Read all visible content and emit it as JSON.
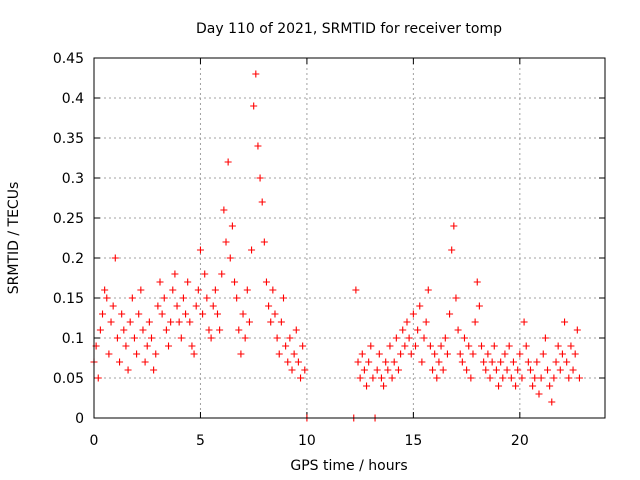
{
  "chart_data": {
    "type": "scatter",
    "title": "Day 110 of 2021, SRMTID for receiver tomp",
    "xlabel": "GPS time / hours",
    "ylabel": "SRMTID / TECUs",
    "xlim": [
      0,
      24
    ],
    "ylim": [
      0,
      0.45
    ],
    "xticks": [
      0,
      5,
      10,
      15,
      20
    ],
    "xtick_labels": [
      "0",
      "5",
      "10",
      "15",
      "20"
    ],
    "yticks": [
      0,
      0.05,
      0.1,
      0.15,
      0.2,
      0.25,
      0.3,
      0.35,
      0.4,
      0.45
    ],
    "ytick_labels": [
      "0",
      "0.05",
      "0.1",
      "0.15",
      "0.2",
      "0.25",
      "0.3",
      "0.35",
      "0.4",
      "0.45"
    ],
    "grid": true,
    "marker": "plus",
    "color": "#ff0000",
    "series": [
      {
        "name": "SRMTID",
        "points": [
          [
            0.0,
            0.07
          ],
          [
            0.1,
            0.09
          ],
          [
            0.2,
            0.05
          ],
          [
            0.3,
            0.11
          ],
          [
            0.4,
            0.13
          ],
          [
            0.5,
            0.16
          ],
          [
            0.6,
            0.15
          ],
          [
            0.7,
            0.08
          ],
          [
            0.8,
            0.12
          ],
          [
            0.9,
            0.14
          ],
          [
            1.0,
            0.2
          ],
          [
            1.1,
            0.1
          ],
          [
            1.2,
            0.07
          ],
          [
            1.3,
            0.13
          ],
          [
            1.4,
            0.11
          ],
          [
            1.5,
            0.09
          ],
          [
            1.6,
            0.06
          ],
          [
            1.7,
            0.12
          ],
          [
            1.8,
            0.15
          ],
          [
            1.9,
            0.1
          ],
          [
            2.0,
            0.08
          ],
          [
            2.1,
            0.13
          ],
          [
            2.2,
            0.16
          ],
          [
            2.3,
            0.11
          ],
          [
            2.4,
            0.07
          ],
          [
            2.5,
            0.09
          ],
          [
            2.6,
            0.12
          ],
          [
            2.7,
            0.1
          ],
          [
            2.8,
            0.06
          ],
          [
            2.9,
            0.08
          ],
          [
            3.0,
            0.14
          ],
          [
            3.1,
            0.17
          ],
          [
            3.2,
            0.13
          ],
          [
            3.3,
            0.15
          ],
          [
            3.4,
            0.11
          ],
          [
            3.5,
            0.09
          ],
          [
            3.6,
            0.12
          ],
          [
            3.7,
            0.16
          ],
          [
            3.8,
            0.18
          ],
          [
            3.9,
            0.14
          ],
          [
            4.0,
            0.12
          ],
          [
            4.1,
            0.1
          ],
          [
            4.2,
            0.15
          ],
          [
            4.3,
            0.13
          ],
          [
            4.4,
            0.17
          ],
          [
            4.5,
            0.12
          ],
          [
            4.6,
            0.09
          ],
          [
            4.7,
            0.08
          ],
          [
            4.8,
            0.14
          ],
          [
            4.9,
            0.16
          ],
          [
            5.0,
            0.21
          ],
          [
            5.1,
            0.13
          ],
          [
            5.2,
            0.18
          ],
          [
            5.3,
            0.15
          ],
          [
            5.4,
            0.11
          ],
          [
            5.5,
            0.1
          ],
          [
            5.6,
            0.14
          ],
          [
            5.7,
            0.16
          ],
          [
            5.8,
            0.13
          ],
          [
            5.9,
            0.11
          ],
          [
            6.0,
            0.18
          ],
          [
            6.1,
            0.26
          ],
          [
            6.2,
            0.22
          ],
          [
            6.3,
            0.32
          ],
          [
            6.4,
            0.2
          ],
          [
            6.5,
            0.24
          ],
          [
            6.6,
            0.17
          ],
          [
            6.7,
            0.15
          ],
          [
            6.8,
            0.11
          ],
          [
            6.9,
            0.08
          ],
          [
            7.0,
            0.13
          ],
          [
            7.1,
            0.1
          ],
          [
            7.2,
            0.16
          ],
          [
            7.3,
            0.12
          ],
          [
            7.4,
            0.21
          ],
          [
            7.5,
            0.39
          ],
          [
            7.6,
            0.43
          ],
          [
            7.7,
            0.34
          ],
          [
            7.8,
            0.3
          ],
          [
            7.9,
            0.27
          ],
          [
            8.0,
            0.22
          ],
          [
            8.1,
            0.17
          ],
          [
            8.2,
            0.14
          ],
          [
            8.3,
            0.12
          ],
          [
            8.4,
            0.16
          ],
          [
            8.5,
            0.13
          ],
          [
            8.6,
            0.1
          ],
          [
            8.7,
            0.08
          ],
          [
            8.8,
            0.12
          ],
          [
            8.9,
            0.15
          ],
          [
            9.0,
            0.09
          ],
          [
            9.1,
            0.07
          ],
          [
            9.2,
            0.1
          ],
          [
            9.3,
            0.06
          ],
          [
            9.4,
            0.08
          ],
          [
            9.5,
            0.11
          ],
          [
            9.6,
            0.07
          ],
          [
            9.7,
            0.05
          ],
          [
            9.8,
            0.09
          ],
          [
            9.9,
            0.06
          ],
          [
            10.0,
            0.0
          ],
          [
            12.2,
            0.0
          ],
          [
            12.3,
            0.16
          ],
          [
            12.4,
            0.07
          ],
          [
            12.5,
            0.05
          ],
          [
            12.6,
            0.08
          ],
          [
            12.7,
            0.06
          ],
          [
            12.8,
            0.04
          ],
          [
            12.9,
            0.07
          ],
          [
            13.0,
            0.09
          ],
          [
            13.1,
            0.05
          ],
          [
            13.2,
            0.0
          ],
          [
            13.3,
            0.06
          ],
          [
            13.4,
            0.08
          ],
          [
            13.5,
            0.05
          ],
          [
            13.6,
            0.04
          ],
          [
            13.7,
            0.07
          ],
          [
            13.8,
            0.06
          ],
          [
            13.9,
            0.09
          ],
          [
            14.0,
            0.05
          ],
          [
            14.1,
            0.07
          ],
          [
            14.2,
            0.1
          ],
          [
            14.3,
            0.06
          ],
          [
            14.4,
            0.08
          ],
          [
            14.5,
            0.11
          ],
          [
            14.6,
            0.09
          ],
          [
            14.7,
            0.12
          ],
          [
            14.8,
            0.1
          ],
          [
            14.9,
            0.08
          ],
          [
            15.0,
            0.13
          ],
          [
            15.1,
            0.09
          ],
          [
            15.2,
            0.11
          ],
          [
            15.3,
            0.14
          ],
          [
            15.4,
            0.07
          ],
          [
            15.5,
            0.1
          ],
          [
            15.6,
            0.12
          ],
          [
            15.7,
            0.16
          ],
          [
            15.8,
            0.09
          ],
          [
            15.9,
            0.06
          ],
          [
            16.0,
            0.08
          ],
          [
            16.1,
            0.05
          ],
          [
            16.2,
            0.07
          ],
          [
            16.3,
            0.09
          ],
          [
            16.4,
            0.06
          ],
          [
            16.5,
            0.1
          ],
          [
            16.6,
            0.08
          ],
          [
            16.7,
            0.13
          ],
          [
            16.8,
            0.21
          ],
          [
            16.9,
            0.24
          ],
          [
            17.0,
            0.15
          ],
          [
            17.1,
            0.11
          ],
          [
            17.2,
            0.08
          ],
          [
            17.3,
            0.07
          ],
          [
            17.4,
            0.1
          ],
          [
            17.5,
            0.06
          ],
          [
            17.6,
            0.09
          ],
          [
            17.7,
            0.05
          ],
          [
            17.8,
            0.08
          ],
          [
            17.9,
            0.12
          ],
          [
            18.0,
            0.17
          ],
          [
            18.1,
            0.14
          ],
          [
            18.2,
            0.09
          ],
          [
            18.3,
            0.07
          ],
          [
            18.4,
            0.06
          ],
          [
            18.5,
            0.08
          ],
          [
            18.6,
            0.05
          ],
          [
            18.7,
            0.07
          ],
          [
            18.8,
            0.09
          ],
          [
            18.9,
            0.06
          ],
          [
            19.0,
            0.04
          ],
          [
            19.1,
            0.07
          ],
          [
            19.2,
            0.05
          ],
          [
            19.3,
            0.08
          ],
          [
            19.4,
            0.06
          ],
          [
            19.5,
            0.09
          ],
          [
            19.6,
            0.05
          ],
          [
            19.7,
            0.07
          ],
          [
            19.8,
            0.04
          ],
          [
            19.9,
            0.06
          ],
          [
            20.0,
            0.08
          ],
          [
            20.1,
            0.05
          ],
          [
            20.2,
            0.12
          ],
          [
            20.3,
            0.09
          ],
          [
            20.4,
            0.07
          ],
          [
            20.5,
            0.06
          ],
          [
            20.6,
            0.04
          ],
          [
            20.7,
            0.05
          ],
          [
            20.8,
            0.07
          ],
          [
            20.9,
            0.03
          ],
          [
            21.0,
            0.05
          ],
          [
            21.1,
            0.08
          ],
          [
            21.2,
            0.1
          ],
          [
            21.3,
            0.06
          ],
          [
            21.4,
            0.04
          ],
          [
            21.5,
            0.02
          ],
          [
            21.6,
            0.05
          ],
          [
            21.7,
            0.07
          ],
          [
            21.8,
            0.09
          ],
          [
            21.9,
            0.06
          ],
          [
            22.0,
            0.08
          ],
          [
            22.1,
            0.12
          ],
          [
            22.2,
            0.07
          ],
          [
            22.3,
            0.05
          ],
          [
            22.4,
            0.09
          ],
          [
            22.5,
            0.06
          ],
          [
            22.6,
            0.08
          ],
          [
            22.7,
            0.11
          ],
          [
            22.8,
            0.05
          ]
        ]
      }
    ]
  }
}
